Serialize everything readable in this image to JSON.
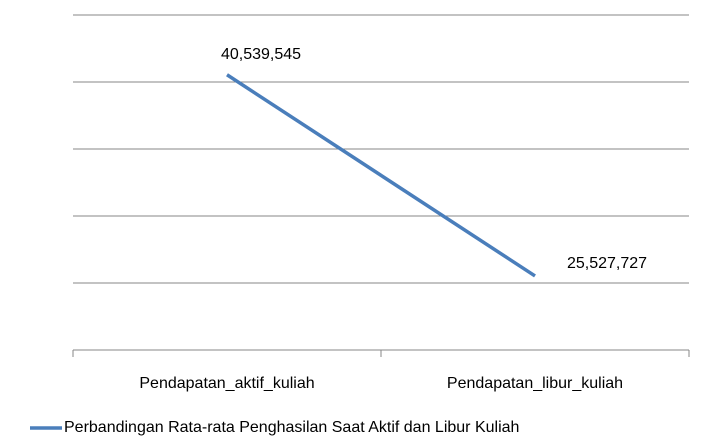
{
  "chart_data": {
    "type": "line",
    "categories": [
      "Pendapatan_aktif_kuliah",
      "Pendapatan_libur_kuliah"
    ],
    "series": [
      {
        "name": "Perbandingan Rata-rata Penghasilan Saat Aktif dan Libur Kuliah",
        "color": "#4a7ebb",
        "values": [
          40539545,
          25527727
        ],
        "value_labels": [
          "40,539,545",
          "25,527,727"
        ]
      }
    ],
    "ylim": [
      20000000,
      45000000
    ],
    "yticks": [
      20000000,
      25000000,
      30000000,
      35000000,
      40000000,
      45000000
    ],
    "grid": true,
    "legend": "bottom"
  }
}
